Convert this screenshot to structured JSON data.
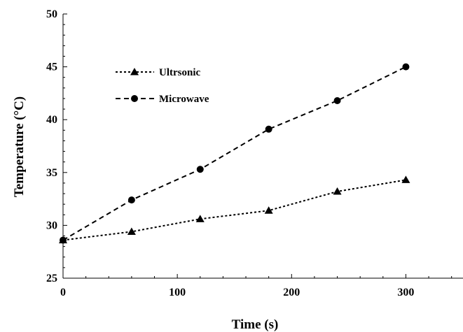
{
  "chart_data": {
    "type": "line",
    "xlabel": "Time (s)",
    "ylabel": "Temperature (°C)",
    "xlim": [
      0,
      350
    ],
    "ylim": [
      25,
      50
    ],
    "x_ticks": [
      0,
      100,
      200,
      300
    ],
    "y_ticks": [
      25,
      30,
      35,
      40,
      45,
      50
    ],
    "grid": false,
    "legend_position": "top-left",
    "x": [
      0,
      60,
      120,
      180,
      240,
      300
    ],
    "series": [
      {
        "name": "Ultrsonic",
        "marker": "triangle",
        "line_style": "dotted",
        "color": "#000000",
        "values": [
          28.6,
          29.4,
          30.6,
          31.4,
          33.2,
          34.3
        ]
      },
      {
        "name": "Microwave",
        "marker": "circle",
        "line_style": "dashed",
        "color": "#000000",
        "values": [
          28.6,
          32.4,
          35.3,
          39.1,
          41.8,
          45.0
        ]
      }
    ]
  }
}
